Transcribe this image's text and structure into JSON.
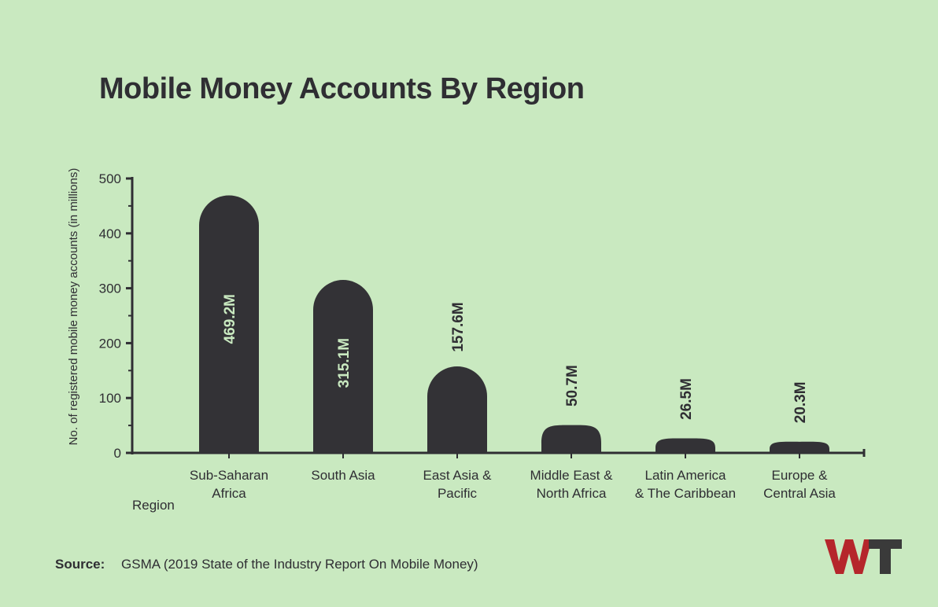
{
  "title": "Mobile Money Accounts By Region",
  "source": {
    "label": "Source:",
    "text": "GSMA (2019 State of the Industry Report On Mobile Money)"
  },
  "logo": {
    "text": "WT"
  },
  "colors": {
    "background": "#c9e9c0",
    "bar": "#333236",
    "text": "#2f2e33",
    "label_inside": "#c9e9c0",
    "logo_w": "#b5262b",
    "logo_t": "#3a3a3a"
  },
  "chart_data": {
    "type": "bar",
    "title": "Mobile Money Accounts By Region",
    "xlabel": "Region",
    "ylabel": "No. of registered mobile money accounts  (in millions)",
    "ylim": [
      0,
      500
    ],
    "yticks": [
      0,
      100,
      200,
      300,
      400,
      500
    ],
    "grid": false,
    "categories": [
      [
        "Sub-Saharan",
        "Africa"
      ],
      [
        "South Asia"
      ],
      [
        "East Asia &",
        "Pacific"
      ],
      [
        "Middle East &",
        "North Africa"
      ],
      [
        "Latin America",
        "& The Caribbean"
      ],
      [
        "Europe &",
        "Central Asia"
      ]
    ],
    "values": [
      469.2,
      315.1,
      157.6,
      50.7,
      26.5,
      20.3
    ],
    "value_labels": [
      "469.2M",
      "315.1M",
      "157.6M",
      "50.7M",
      "26.5M",
      "20.3M"
    ]
  }
}
